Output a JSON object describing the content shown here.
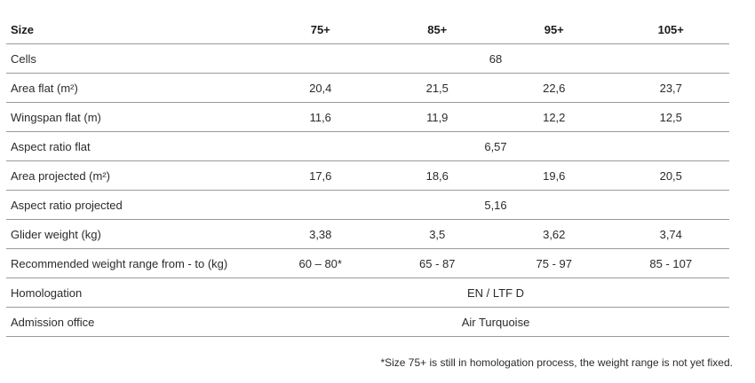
{
  "table": {
    "header": {
      "label": "Size",
      "sizes": [
        "75+",
        "85+",
        "95+",
        "105+"
      ]
    },
    "rows": [
      {
        "label": "Cells",
        "span": "68"
      },
      {
        "label": "Area flat (m²)",
        "values": [
          "20,4",
          "21,5",
          "22,6",
          "23,7"
        ]
      },
      {
        "label": "Wingspan flat (m)",
        "values": [
          "11,6",
          "11,9",
          "12,2",
          "12,5"
        ]
      },
      {
        "label": "Aspect ratio flat",
        "span": "6,57"
      },
      {
        "label": "Area projected (m²)",
        "values": [
          "17,6",
          "18,6",
          "19,6",
          "20,5"
        ]
      },
      {
        "label": "Aspect ratio projected",
        "span": "5,16"
      },
      {
        "label": "Glider weight (kg)",
        "values": [
          "3,38",
          "3,5",
          "3,62",
          "3,74"
        ]
      },
      {
        "label": "Recommended weight range from - to (kg)",
        "values": [
          "60 – 80*",
          "65 - 87",
          "75 - 97",
          "85 - 107"
        ]
      },
      {
        "label": "Homologation",
        "span": "EN / LTF D"
      },
      {
        "label": "Admission office",
        "span": "Air Turquoise"
      }
    ]
  },
  "footnote": "*Size 75+ is still in homologation process, the weight range is not yet fixed."
}
